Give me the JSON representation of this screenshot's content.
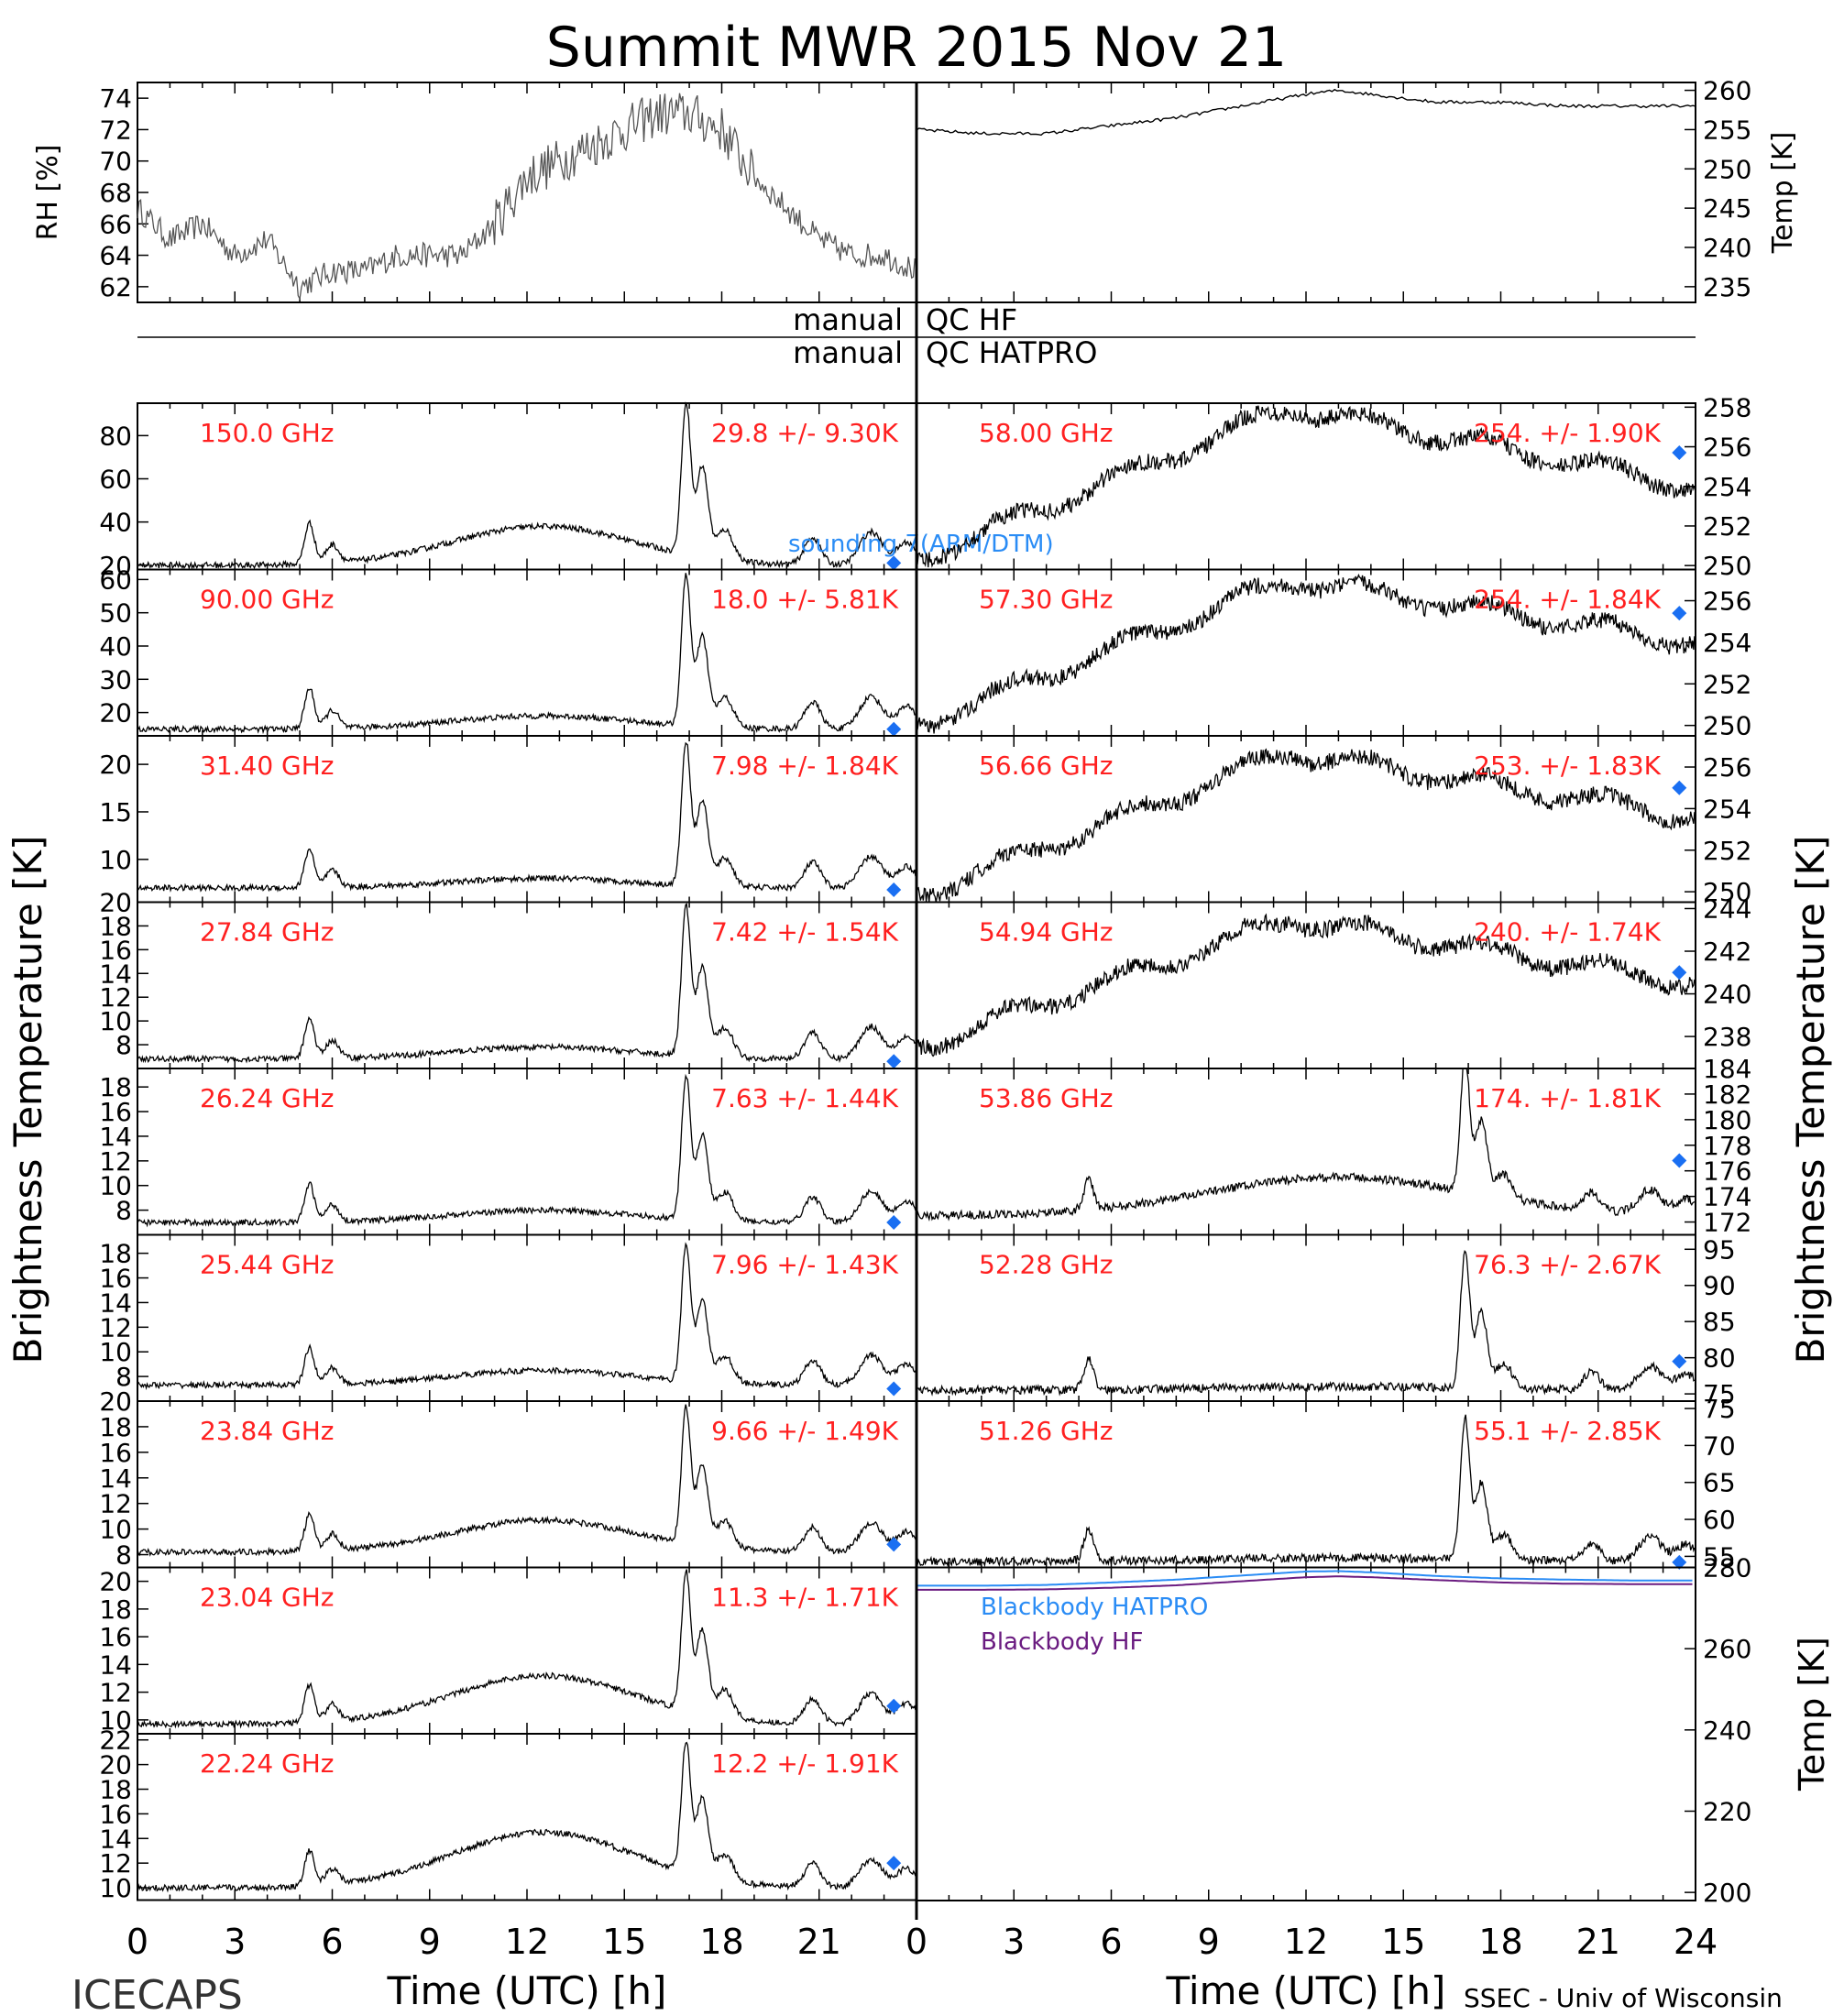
{
  "title": "Summit MWR 2015 Nov 21",
  "footer_left": "ICECAPS",
  "footer_right": "SSEC - Univ of Wisconsin",
  "colors": {
    "trace": "#000000",
    "label": "#ff2020",
    "marker": "#1a6ff2",
    "hatpro": "#2a8cf5",
    "hf": "#6a1b80",
    "sounding": "#2a8cf5"
  },
  "qc": {
    "hf_label": "manual",
    "hf_name": "QC HF",
    "hatpro_label": "manual",
    "hatpro_name": "QC HATPRO"
  },
  "axes": {
    "x_label": "Time (UTC) [h]",
    "x_ticks": [
      "0",
      "3",
      "6",
      "9",
      "12",
      "15",
      "18",
      "21"
    ],
    "x_ticks_right": [
      "0",
      "3",
      "6",
      "9",
      "12",
      "15",
      "18",
      "21",
      "24"
    ],
    "left_ylabel": "Brightness Temperature [K]",
    "right_ylabel": "Brightness Temperature [K]",
    "rh_label": "RH [%]",
    "temp_label": "Temp [K]",
    "bb_temp_label": "Temp [K]"
  },
  "legend": {
    "sounding": "sounding 7(ARM/DTM)",
    "bb_hatpro": "Blackbody HATPRO",
    "bb_hf": "Blackbody HF"
  },
  "chart_data": {
    "type": "line",
    "x_range": [
      0,
      24
    ],
    "met": {
      "rh": {
        "ylim": [
          61,
          75
        ],
        "ticks": [
          "62",
          "64",
          "66",
          "68",
          "70",
          "72",
          "74"
        ],
        "x": [
          0,
          1,
          2,
          3,
          4,
          5,
          6,
          7,
          8,
          9,
          10,
          11,
          12,
          13,
          14,
          15,
          16,
          17,
          18,
          19,
          20,
          21,
          22,
          23,
          24
        ],
        "values": [
          67,
          65,
          66,
          64,
          65,
          62,
          63,
          63,
          64,
          64,
          64,
          66,
          69,
          70,
          71,
          72,
          73,
          73,
          72,
          69,
          67,
          65,
          64,
          64,
          63
        ]
      },
      "temp": {
        "ylim": [
          233,
          261
        ],
        "ticks": [
          "235",
          "240",
          "245",
          "250",
          "255",
          "260"
        ],
        "x": [
          0,
          2,
          4,
          6,
          8,
          10,
          12,
          13,
          14,
          16,
          18,
          20,
          22,
          24
        ],
        "values": [
          255,
          254.5,
          254.5,
          255.5,
          256.5,
          258,
          259.5,
          260,
          259.5,
          258.5,
          258.5,
          258,
          258,
          258
        ]
      }
    },
    "left_channels": [
      {
        "freq": "150.0 GHz",
        "stat": "29.8 +/-  9.30K",
        "ylim": [
          18,
          95
        ],
        "ticks": [
          "20",
          "40",
          "60",
          "80"
        ],
        "base": 20,
        "amp": 70,
        "hump": 18,
        "marker_x": 23.3,
        "marker_y": 21
      },
      {
        "freq": "90.00 GHz",
        "stat": "18.0 +/-  5.81K",
        "ylim": [
          13,
          63
        ],
        "ticks": [
          "20",
          "30",
          "40",
          "50",
          "60"
        ],
        "base": 15,
        "amp": 45,
        "hump": 4,
        "marker_x": 23.3,
        "marker_y": 15
      },
      {
        "freq": "31.40 GHz",
        "stat": "7.98 +/- 1.84K",
        "ylim": [
          5.5,
          23
        ],
        "ticks": [
          "10",
          "15",
          "20"
        ],
        "base": 7,
        "amp": 15,
        "hump": 1,
        "marker_x": 23.3,
        "marker_y": 6.8
      },
      {
        "freq": "27.84 GHz",
        "stat": "7.42 +/- 1.54K",
        "ylim": [
          6,
          20
        ],
        "ticks": [
          "8",
          "10",
          "12",
          "14",
          "16",
          "18",
          "20"
        ],
        "base": 6.8,
        "amp": 12.5,
        "hump": 1,
        "marker_x": 23.3,
        "marker_y": 6.6
      },
      {
        "freq": "26.24 GHz",
        "stat": "7.63 +/- 1.44K",
        "ylim": [
          6,
          19.5
        ],
        "ticks": [
          "8",
          "10",
          "12",
          "14",
          "16",
          "18"
        ],
        "base": 7,
        "amp": 11.5,
        "hump": 1,
        "marker_x": 23.3,
        "marker_y": 7
      },
      {
        "freq": "25.44 GHz",
        "stat": "7.96 +/- 1.43K",
        "ylim": [
          6,
          19.5
        ],
        "ticks": [
          "8",
          "10",
          "12",
          "14",
          "16",
          "18"
        ],
        "base": 7.3,
        "amp": 11,
        "hump": 1.2,
        "marker_x": 23.3,
        "marker_y": 7
      },
      {
        "freq": "23.84 GHz",
        "stat": "9.66 +/- 1.49K",
        "ylim": [
          7,
          20
        ],
        "ticks": [
          "8",
          "10",
          "12",
          "14",
          "16",
          "18",
          "20"
        ],
        "base": 8.2,
        "amp": 10.5,
        "hump": 2.5,
        "marker_x": 23.3,
        "marker_y": 8.8
      },
      {
        "freq": "23.04 GHz",
        "stat": "11.3 +/- 1.71K",
        "ylim": [
          9,
          21
        ],
        "ticks": [
          "10",
          "12",
          "14",
          "16",
          "18",
          "20"
        ],
        "base": 9.7,
        "amp": 10,
        "hump": 3.5,
        "marker_x": 23.3,
        "marker_y": 11
      },
      {
        "freq": "22.24 GHz",
        "stat": "12.2 +/- 1.91K",
        "ylim": [
          9,
          22.5
        ],
        "ticks": [
          "10",
          "12",
          "14",
          "16",
          "18",
          "20",
          "22"
        ],
        "base": 10,
        "amp": 10.5,
        "hump": 4.5,
        "marker_x": 23.3,
        "marker_y": 12
      }
    ],
    "right_channels": [
      {
        "freq": "58.00 GHz",
        "stat": "254. +/- 1.90K",
        "ylim": [
          249.8,
          258.2
        ],
        "ticks": [
          "250",
          "252",
          "254",
          "256",
          "258"
        ],
        "kind": "hump",
        "start": 250.3,
        "peak": 258,
        "end": 254,
        "marker_x": 23.5,
        "marker_y": 255.7
      },
      {
        "freq": "57.30 GHz",
        "stat": "254. +/- 1.84K",
        "ylim": [
          249.5,
          257.5
        ],
        "ticks": [
          "250",
          "252",
          "254",
          "256"
        ],
        "kind": "hump",
        "start": 250,
        "peak": 257,
        "end": 254,
        "marker_x": 23.5,
        "marker_y": 255.4
      },
      {
        "freq": "56.66 GHz",
        "stat": "253. +/- 1.83K",
        "ylim": [
          249.5,
          257.5
        ],
        "ticks": [
          "250",
          "252",
          "254",
          "256"
        ],
        "kind": "hump",
        "start": 249.8,
        "peak": 256.7,
        "end": 253.6,
        "marker_x": 23.5,
        "marker_y": 255
      },
      {
        "freq": "54.94 GHz",
        "stat": "240. +/- 1.74K",
        "ylim": [
          236.5,
          244.3
        ],
        "ticks": [
          "238",
          "240",
          "242",
          "244"
        ],
        "kind": "hump",
        "start": 237.5,
        "peak": 243.5,
        "end": 240.5,
        "marker_x": 23.5,
        "marker_y": 241
      },
      {
        "freq": "53.86 GHz",
        "stat": "174. +/- 1.81K",
        "ylim": [
          171,
          184
        ],
        "ticks": [
          "172",
          "174",
          "176",
          "178",
          "180",
          "182",
          "184"
        ],
        "kind": "spike",
        "base": 172.5,
        "mid": 175.5,
        "amp": 10.5,
        "marker_x": 23.5,
        "marker_y": 176.8
      },
      {
        "freq": "52.28 GHz",
        "stat": "76.3 +/- 2.67K",
        "ylim": [
          74,
          97
        ],
        "ticks": [
          "75",
          "80",
          "85",
          "90",
          "95"
        ],
        "kind": "spike",
        "base": 75.5,
        "mid": 76,
        "amp": 19,
        "marker_x": 23.5,
        "marker_y": 79.5
      },
      {
        "freq": "51.26 GHz",
        "stat": "55.1 +/- 2.85K",
        "ylim": [
          53.5,
          76
        ],
        "ticks": [
          "55",
          "60",
          "65",
          "70",
          "75"
        ],
        "kind": "spike",
        "base": 54.3,
        "mid": 54.8,
        "amp": 19,
        "marker_x": 23.5,
        "marker_y": 54.2
      }
    ],
    "blackbody": {
      "ylim": [
        198,
        280
      ],
      "ticks": [
        "200",
        "220",
        "240",
        "260",
        "280"
      ],
      "x": [
        0,
        2,
        4,
        6,
        8,
        10,
        12,
        13,
        14,
        16,
        18,
        20,
        22,
        24
      ],
      "hatpro": [
        275.5,
        275.5,
        275.7,
        276.3,
        277,
        278,
        279,
        279.1,
        278.8,
        277.9,
        277.3,
        277,
        276.8,
        276.8
      ],
      "hf": [
        274.5,
        274.5,
        274.6,
        275,
        275.6,
        276.6,
        277.6,
        277.8,
        277.6,
        276.9,
        276.3,
        276,
        275.9,
        275.9
      ]
    }
  }
}
